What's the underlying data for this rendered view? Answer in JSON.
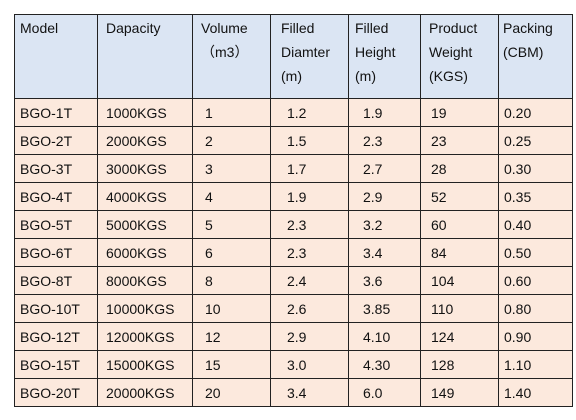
{
  "table": {
    "header": [
      [
        "Model"
      ],
      [
        "Dapacity"
      ],
      [
        "Volume",
        "（m3）"
      ],
      [
        "Filled",
        "Diamter",
        "(m)"
      ],
      [
        "Filled",
        "Height",
        "(m)"
      ],
      [
        "Product",
        "Weight",
        "(KGS)"
      ],
      [
        "Packing",
        "(CBM)"
      ]
    ],
    "rows": [
      [
        "BGO-1T",
        "1000KGS",
        "1",
        "1.2",
        "1.9",
        "19",
        "0.20"
      ],
      [
        "BGO-2T",
        "2000KGS",
        "2",
        "1.5",
        "2.3",
        "23",
        "0.25"
      ],
      [
        "BGO-3T",
        "3000KGS",
        "3",
        "1.7",
        "2.7",
        "28",
        "0.30"
      ],
      [
        "BGO-4T",
        "4000KGS",
        "4",
        "1.9",
        "2.9",
        "52",
        "0.35"
      ],
      [
        "BGO-5T",
        "5000KGS",
        "5",
        "2.3",
        "3.2",
        "60",
        "0.40"
      ],
      [
        "BGO-6T",
        "6000KGS",
        "6",
        "2.3",
        "3.4",
        "84",
        "0.50"
      ],
      [
        "BGO-8T",
        "8000KGS",
        "8",
        "2.4",
        "3.6",
        "104",
        "0.60"
      ],
      [
        "BGO-10T",
        "10000KGS",
        "10",
        "2.6",
        "3.85",
        "110",
        "0.80"
      ],
      [
        "BGO-12T",
        "12000KGS",
        "12",
        "2.9",
        "4.10",
        "124",
        "0.90"
      ],
      [
        "BGO-15T",
        "15000KGS",
        "15",
        "3.0",
        "4.30",
        "128",
        "1.10"
      ],
      [
        "BGO-20T",
        "20000KGS",
        "20",
        "3.4",
        "6.0",
        "149",
        "1.40"
      ]
    ]
  }
}
